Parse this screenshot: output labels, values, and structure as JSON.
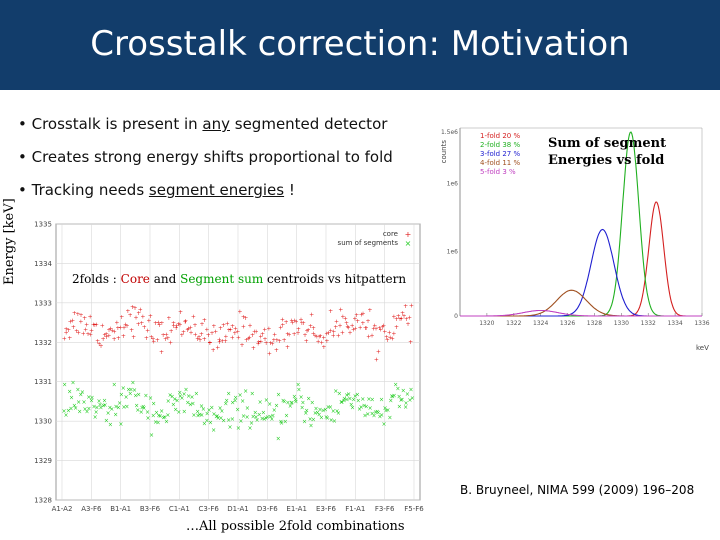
{
  "header": {
    "title": "Crosstalk correction: Motivation",
    "background": "#123d6b"
  },
  "bullets": {
    "b1_prefix": "• Crosstalk is present in ",
    "b1_underline": "any",
    "b1_suffix": " segmented detector",
    "b2": "• Creates strong energy shifts proportional to fold",
    "b3_prefix": "• Tracking needs ",
    "b3_underline": "segment energies",
    "b3_suffix": " !"
  },
  "left_plot": {
    "ylabel": "Energy [keV]",
    "caption_prefix": "2folds : ",
    "caption_core": "Core",
    "caption_and": " and ",
    "caption_segsum": "Segment sum",
    "caption_suffix": " centroids vs hitpattern",
    "footnote": "…All possible 2fold combinations",
    "legend_core": "core",
    "legend_segments": "sum of segments"
  },
  "right_plot": {
    "title_line1": "Sum of segment",
    "title_line2": "Energies vs fold",
    "ylabel": "counts",
    "xlabel": "keV"
  },
  "reference": "B. Bruyneel, NIMA 599 (2009) 196–208",
  "chart_data": [
    {
      "type": "scatter",
      "title": "",
      "xlabel": "",
      "ylabel": "Energy [keV]",
      "ylim": [
        1328,
        1335
      ],
      "y_ticks": [
        "1328",
        "1329",
        "1330",
        "1331",
        "1332",
        "1333",
        "1334",
        "1335"
      ],
      "x_ticks": [
        "A1-A2",
        "A3-F6",
        "B1-A1",
        "B3-F6",
        "C1-A1",
        "C3-F6",
        "D1-A1",
        "D3-F6",
        "E1-A1",
        "E3-F6",
        "F1-A1",
        "F3-F6",
        "F5-F6"
      ],
      "grid": true,
      "legend_placement": "top-right",
      "series": [
        {
          "name": "core",
          "color": "#e02020",
          "mean": 1332.3,
          "spread": 0.35,
          "count": 260
        },
        {
          "name": "sum of segments",
          "color": "#22cc22",
          "mean": 1330.3,
          "spread": 0.4,
          "count": 260
        }
      ]
    },
    {
      "type": "line",
      "title": "",
      "xlabel": "keV",
      "ylabel": "counts",
      "xlim": [
        1318,
        1336
      ],
      "x_ticks": [
        "1320",
        "1322",
        "1324",
        "1326",
        "1328",
        "1330",
        "1332",
        "1334",
        "1336"
      ],
      "y_ticks": [
        "0",
        "1e6",
        "1e6",
        "1.5e6"
      ],
      "legend_placement": "top-left",
      "series": [
        {
          "name": "1-fold 20 %",
          "color": "#d42020",
          "center": 1332.6,
          "width": 0.55,
          "peak": 0.62
        },
        {
          "name": "2-fold 38 %",
          "color": "#20b020",
          "center": 1330.7,
          "width": 0.6,
          "peak": 1.0
        },
        {
          "name": "3-fold 27 %",
          "color": "#2020d0",
          "center": 1328.6,
          "width": 0.85,
          "peak": 0.47
        },
        {
          "name": "4-fold 11 %",
          "color": "#a05020",
          "center": 1326.3,
          "width": 1.1,
          "peak": 0.14
        },
        {
          "name": "5-fold 3 %",
          "color": "#c040c0",
          "center": 1324.0,
          "width": 1.3,
          "peak": 0.03
        }
      ]
    }
  ]
}
